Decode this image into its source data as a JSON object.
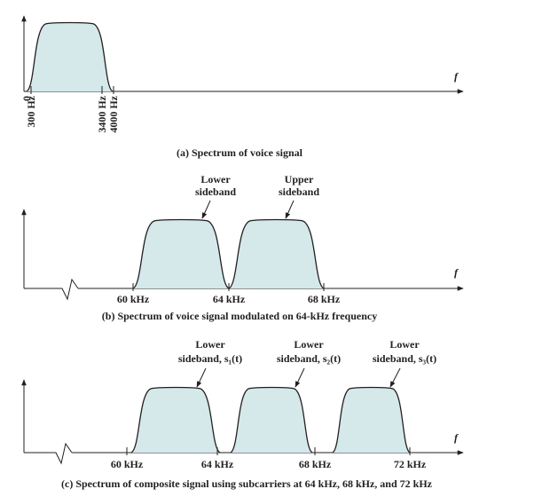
{
  "panels": [
    {
      "caption": "(a) Spectrum of voice signal",
      "axis_label": "f",
      "ticks": [
        "0",
        "300 Hz",
        "3400 Hz",
        "4000 Hz"
      ]
    },
    {
      "caption": "(b) Spectrum of voice signal modulated on 64-kHz frequency",
      "axis_label": "f",
      "ticks": [
        "60 kHz",
        "64 kHz",
        "68 kHz"
      ],
      "annotations": [
        [
          "Lower",
          "sideband"
        ],
        [
          "Upper",
          "sideband"
        ]
      ]
    },
    {
      "caption": "(c) Spectrum of composite signal using subcarriers at 64 kHz, 68 kHz, and 72 kHz",
      "axis_label": "f",
      "ticks": [
        "60 kHz",
        "64 kHz",
        "68 kHz",
        "72 kHz"
      ],
      "annotations": [
        [
          "Lower",
          "sideband, s₁(t)"
        ],
        [
          "Lower",
          "sideband, s₂(t)"
        ],
        [
          "Lower",
          "sideband, s₃(t)"
        ]
      ]
    }
  ]
}
